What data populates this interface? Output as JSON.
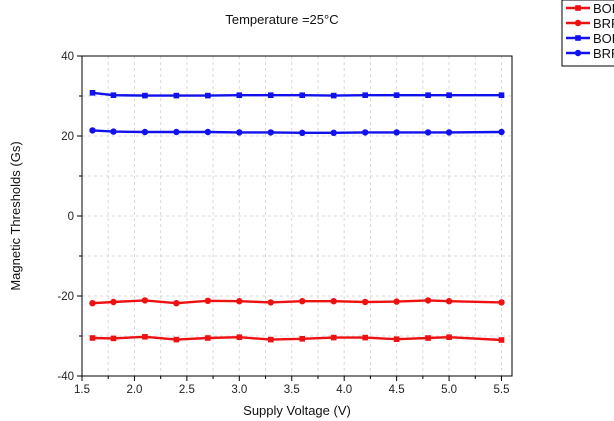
{
  "chart_data": {
    "type": "line",
    "title": "Temperature =25°C",
    "xlabel": "Supply Voltage (V)",
    "ylabel": "Magnetic Thresholds (Gs)",
    "xlim": [
      1.5,
      5.6
    ],
    "ylim": [
      -40,
      40
    ],
    "x_ticks": [
      "1.5",
      "2.0",
      "2.5",
      "3.0",
      "3.5",
      "4.0",
      "4.5",
      "5.0",
      "5.5"
    ],
    "y_ticks": [
      "-40",
      "-20",
      "0",
      "20",
      "40"
    ],
    "grid": true,
    "legend_position": "top-right",
    "x": [
      1.6,
      1.8,
      2.1,
      2.4,
      2.7,
      3.0,
      3.3,
      3.6,
      3.9,
      4.2,
      4.5,
      4.8,
      5.0,
      5.5
    ],
    "series": [
      {
        "name": "BOPN",
        "color": "#ee1111",
        "marker": "square",
        "values": [
          -30.5,
          -30.6,
          -30.2,
          -30.9,
          -30.5,
          -30.3,
          -30.9,
          -30.7,
          -30.4,
          -30.4,
          -30.8,
          -30.5,
          -30.3,
          -31.0
        ]
      },
      {
        "name": "BRPN",
        "color": "#ee1111",
        "marker": "circle",
        "values": [
          -21.8,
          -21.5,
          -21.1,
          -21.8,
          -21.2,
          -21.3,
          -21.6,
          -21.3,
          -21.3,
          -21.5,
          -21.4,
          -21.1,
          -21.3,
          -21.6
        ]
      },
      {
        "name": "BOPS",
        "color": "#1111ee",
        "marker": "square",
        "values": [
          30.8,
          30.2,
          30.1,
          30.1,
          30.1,
          30.2,
          30.2,
          30.2,
          30.1,
          30.2,
          30.2,
          30.2,
          30.2,
          30.2
        ]
      },
      {
        "name": "BRPS",
        "color": "#1111ee",
        "marker": "circle",
        "values": [
          21.4,
          21.1,
          21.0,
          21.0,
          21.0,
          20.9,
          20.9,
          20.8,
          20.8,
          20.9,
          20.9,
          20.9,
          20.9,
          21.0
        ]
      }
    ]
  }
}
